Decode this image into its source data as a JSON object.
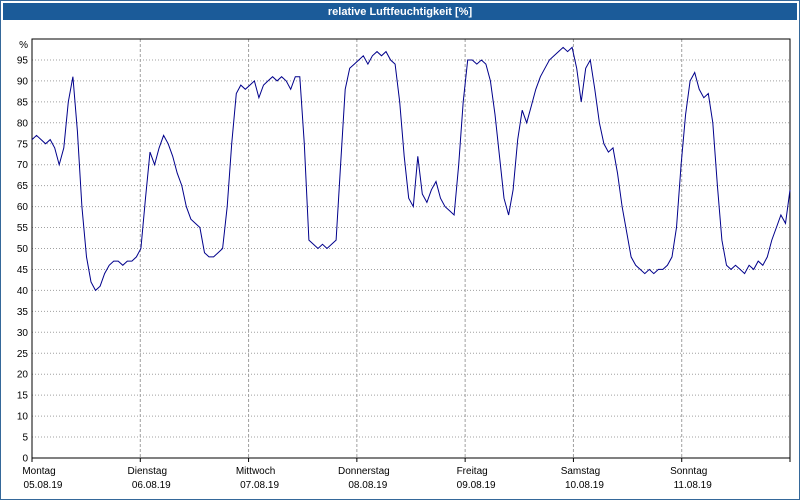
{
  "title": "relative Luftfeuchtigkeit [%]",
  "colors": {
    "titlebar_bg": "#1b5b99",
    "titlebar_text": "#ffffff",
    "window_border": "#35689a",
    "plot_border": "#000000",
    "line": "#00008b",
    "grid": "#a0a0a0",
    "plot_bg": "#ffffff"
  },
  "chart_data": {
    "type": "line",
    "title": "relative Luftfeuchtigkeit [%]",
    "ylabel": "%",
    "legend": "none",
    "grid": {
      "horizontal": "dotted-every-5-percent",
      "vertical": "dashed-at-day-boundaries",
      "color": "#a0a0a0"
    },
    "y_axis": {
      "min": 0,
      "max": 100,
      "tick_step": 5,
      "unit": "%",
      "tick_labels": [
        0,
        5,
        10,
        15,
        20,
        25,
        30,
        35,
        40,
        45,
        50,
        55,
        60,
        65,
        70,
        75,
        80,
        85,
        90,
        95
      ]
    },
    "x_axis": {
      "points_per_day": 24,
      "sampling": "hourly",
      "days": [
        {
          "label": "Montag",
          "date": "05.08.19"
        },
        {
          "label": "Dienstag",
          "date": "06.08.19"
        },
        {
          "label": "Mittwoch",
          "date": "07.08.19"
        },
        {
          "label": "Donnerstag",
          "date": "08.08.19"
        },
        {
          "label": "Freitag",
          "date": "09.08.19"
        },
        {
          "label": "Samstag",
          "date": "10.08.19"
        },
        {
          "label": "Sonntag",
          "date": "11.08.19"
        }
      ]
    },
    "series": [
      {
        "name": "relative Luftfeuchtigkeit",
        "color": "#00008b",
        "values": [
          76,
          77,
          76,
          75,
          76,
          74,
          70,
          74,
          85,
          91,
          78,
          60,
          48,
          42,
          40,
          41,
          44,
          46,
          47,
          47,
          46,
          47,
          47,
          48,
          50,
          62,
          73,
          70,
          74,
          77,
          75,
          72,
          68,
          65,
          60,
          57,
          56,
          55,
          49,
          48,
          48,
          49,
          50,
          60,
          75,
          87,
          89,
          88,
          89,
          90,
          86,
          89,
          90,
          91,
          90,
          91,
          90,
          88,
          91,
          91,
          75,
          52,
          51,
          50,
          51,
          50,
          51,
          52,
          70,
          88,
          93,
          94,
          95,
          96,
          94,
          96,
          97,
          96,
          97,
          95,
          94,
          85,
          72,
          62,
          60,
          72,
          63,
          61,
          64,
          66,
          62,
          60,
          59,
          58,
          70,
          85,
          95,
          95,
          94,
          95,
          94,
          90,
          82,
          72,
          62,
          58,
          64,
          76,
          83,
          80,
          84,
          88,
          91,
          93,
          95,
          96,
          97,
          98,
          97,
          98,
          93,
          85,
          93,
          95,
          88,
          80,
          75,
          73,
          74,
          68,
          60,
          54,
          48,
          46,
          45,
          44,
          45,
          44,
          45,
          45,
          46,
          48,
          55,
          70,
          82,
          90,
          92,
          88,
          86,
          87,
          80,
          65,
          52,
          46,
          45,
          46,
          45,
          44,
          46,
          45,
          47,
          46,
          48,
          52,
          55,
          58,
          56,
          64
        ]
      }
    ]
  }
}
